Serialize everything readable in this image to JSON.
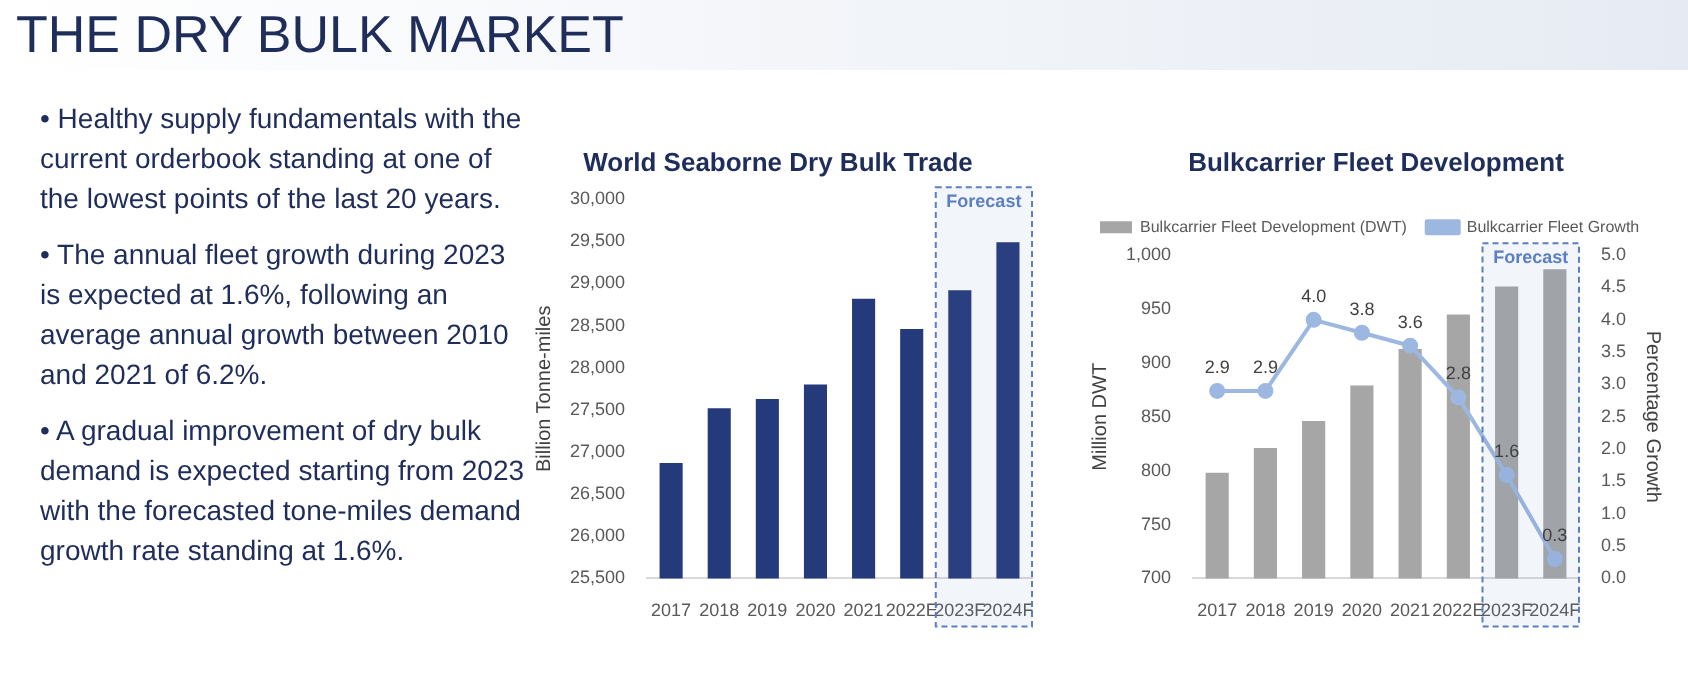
{
  "chart_data": [
    {
      "type": "other",
      "title": "THE DRY BULK MARKET",
      "annotations": [
        "• Healthy supply fundamentals with the current orderbook standing at one of the lowest points of the last 20 years.",
        "• The annual fleet growth during 2023 is expected at 1.6%, following an average annual growth between 2010 and 2021 of 6.2%.",
        "• A gradual improvement of dry bulk demand is expected starting from 2023 with the forecasted tone-miles demand growth rate standing at 1.6%."
      ]
    },
    {
      "type": "bar",
      "title": "World Seaborne Dry Bulk Trade",
      "ylabel": "Billion Tonne-miles",
      "categories": [
        "2017",
        "2018",
        "2019",
        "2020",
        "2021",
        "2022E",
        "2023F",
        "2024F"
      ],
      "values": [
        26870,
        27520,
        27630,
        27800,
        28820,
        28460,
        28920,
        29490
      ],
      "color": "#253a7a",
      "ylim": [
        25500,
        30000
      ],
      "yticks": [
        {
          "value": 25500,
          "label": "25,500"
        },
        {
          "value": 26000,
          "label": "26,000"
        },
        {
          "value": 26500,
          "label": "26,500"
        },
        {
          "value": 27000,
          "label": "27,000"
        },
        {
          "value": 27500,
          "label": "27,500"
        },
        {
          "value": 28000,
          "label": "28,000"
        },
        {
          "value": 28500,
          "label": "28,500"
        },
        {
          "value": 29000,
          "label": "29,000"
        },
        {
          "value": 29500,
          "label": "29,500"
        },
        {
          "value": 30000,
          "label": "30,000"
        }
      ],
      "bands": [
        {
          "axis": "x",
          "from": "2023F",
          "to": "2024F",
          "label": "Forecast",
          "color": "#5b7fc0"
        }
      ]
    },
    {
      "type": "bar",
      "title": "Bulkcarrier Fleet Development",
      "ylabel": "Million DWT",
      "y2label": "Percentage Growth",
      "categories": [
        "2017",
        "2018",
        "2019",
        "2020",
        "2021",
        "2022E",
        "2023F",
        "2024F"
      ],
      "series": [
        {
          "name": "Bulkcarrier Fleet Development (DWT)",
          "color": "#a6a6a6",
          "values": [
            798,
            821,
            846,
            879,
            913,
            945,
            971,
            987
          ]
        },
        {
          "name": "Bulkcarrier Fleet Growth",
          "type": "line",
          "axis": "y2",
          "color": "#9db8e0",
          "values": [
            2.9,
            2.9,
            4.0,
            3.8,
            3.6,
            2.8,
            1.6,
            0.3
          ],
          "value_labels": [
            "2.9",
            "2.9",
            "4.0",
            "3.8",
            "3.6",
            "2.8",
            "1.6",
            "0.3"
          ]
        }
      ],
      "marker": "circle",
      "legend": "top left",
      "ylim": [
        700,
        1000
      ],
      "yticks": [
        700,
        750,
        800,
        850,
        900,
        950,
        {
          "value": 1000,
          "label": "1,000"
        }
      ],
      "y2lim": [
        0,
        5
      ],
      "y2ticks": [
        {
          "value": 0,
          "label": "0.0"
        },
        {
          "value": 0.5,
          "label": "0.5"
        },
        {
          "value": 1,
          "label": "1.0"
        },
        {
          "value": 1.5,
          "label": "1.5"
        },
        {
          "value": 2,
          "label": "2.0"
        },
        {
          "value": 2.5,
          "label": "2.5"
        },
        {
          "value": 3,
          "label": "3.0"
        },
        {
          "value": 3.5,
          "label": "3.5"
        },
        {
          "value": 4,
          "label": "4.0"
        },
        {
          "value": 4.5,
          "label": "4.5"
        },
        {
          "value": 5,
          "label": "5.0"
        }
      ],
      "bands": [
        {
          "axis": "x",
          "from": "2023F",
          "to": "2024F",
          "label": "Forecast",
          "color": "#5b7fc0"
        }
      ]
    }
  ]
}
